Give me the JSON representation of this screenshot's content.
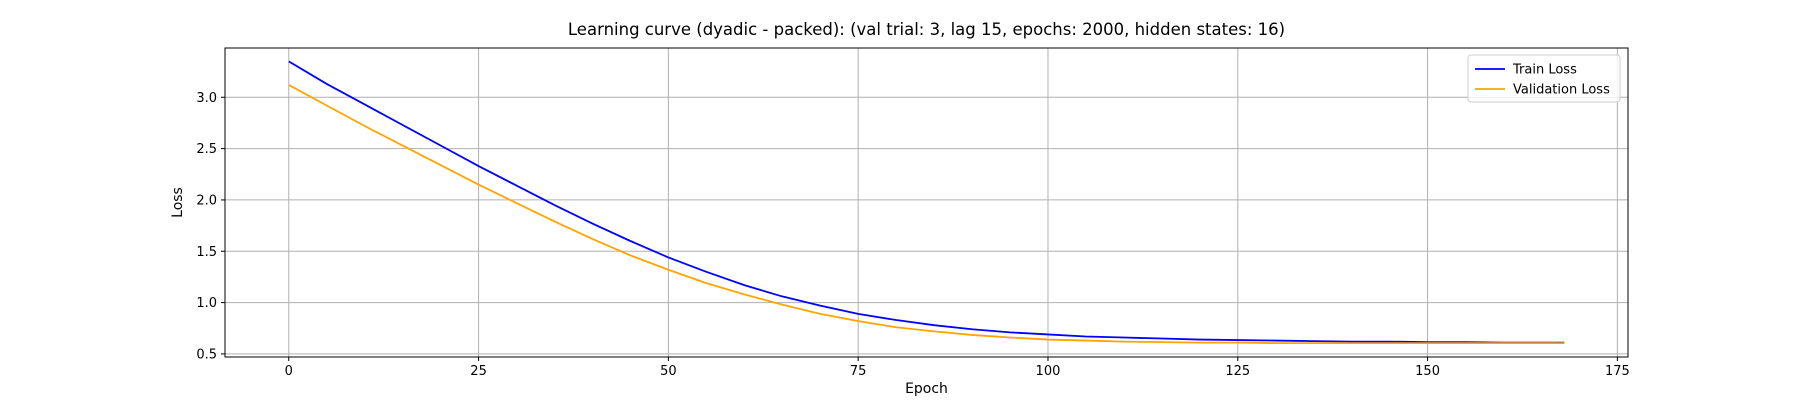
{
  "chart_data": {
    "type": "line",
    "title": "Learning curve (dyadic - packed): (val trial: 3, lag 15, epochs: 2000, hidden states: 16)",
    "xlabel": "Epoch",
    "ylabel": "Loss",
    "xlim": [
      -8.4,
      176.4
    ],
    "ylim": [
      0.47,
      3.48
    ],
    "xticks": [
      0,
      25,
      50,
      75,
      100,
      125,
      150,
      175
    ],
    "yticks": [
      0.5,
      1.0,
      1.5,
      2.0,
      2.5,
      3.0
    ],
    "xtick_labels": [
      "0",
      "25",
      "50",
      "75",
      "100",
      "125",
      "150",
      "175"
    ],
    "ytick_labels": [
      "0.5",
      "1.0",
      "1.5",
      "2.0",
      "2.5",
      "3.0"
    ],
    "grid": true,
    "legend_position": "top-right",
    "series": [
      {
        "name": "Train Loss",
        "color": "#0000ff",
        "x": [
          0,
          5,
          10,
          15,
          20,
          25,
          30,
          35,
          40,
          45,
          50,
          55,
          60,
          65,
          70,
          75,
          80,
          85,
          90,
          95,
          100,
          105,
          110,
          115,
          120,
          125,
          130,
          135,
          140,
          145,
          150,
          155,
          160,
          165,
          168
        ],
        "y": [
          3.35,
          3.13,
          2.93,
          2.73,
          2.53,
          2.33,
          2.14,
          1.95,
          1.77,
          1.6,
          1.44,
          1.3,
          1.17,
          1.06,
          0.97,
          0.89,
          0.83,
          0.78,
          0.74,
          0.71,
          0.69,
          0.67,
          0.66,
          0.65,
          0.64,
          0.635,
          0.63,
          0.625,
          0.62,
          0.62,
          0.615,
          0.615,
          0.61,
          0.61,
          0.61
        ]
      },
      {
        "name": "Validation Loss",
        "color": "#ffa500",
        "x": [
          0,
          5,
          10,
          15,
          20,
          25,
          30,
          35,
          40,
          45,
          50,
          55,
          60,
          65,
          70,
          75,
          80,
          85,
          90,
          95,
          100,
          105,
          110,
          115,
          120,
          125,
          130,
          135,
          140,
          145,
          150,
          155,
          160,
          165,
          168
        ],
        "y": [
          3.12,
          2.92,
          2.72,
          2.53,
          2.34,
          2.15,
          1.97,
          1.79,
          1.62,
          1.46,
          1.32,
          1.19,
          1.08,
          0.98,
          0.89,
          0.82,
          0.76,
          0.72,
          0.685,
          0.66,
          0.64,
          0.63,
          0.62,
          0.615,
          0.61,
          0.61,
          0.605,
          0.605,
          0.605,
          0.605,
          0.605,
          0.605,
          0.605,
          0.605,
          0.605
        ]
      }
    ]
  }
}
